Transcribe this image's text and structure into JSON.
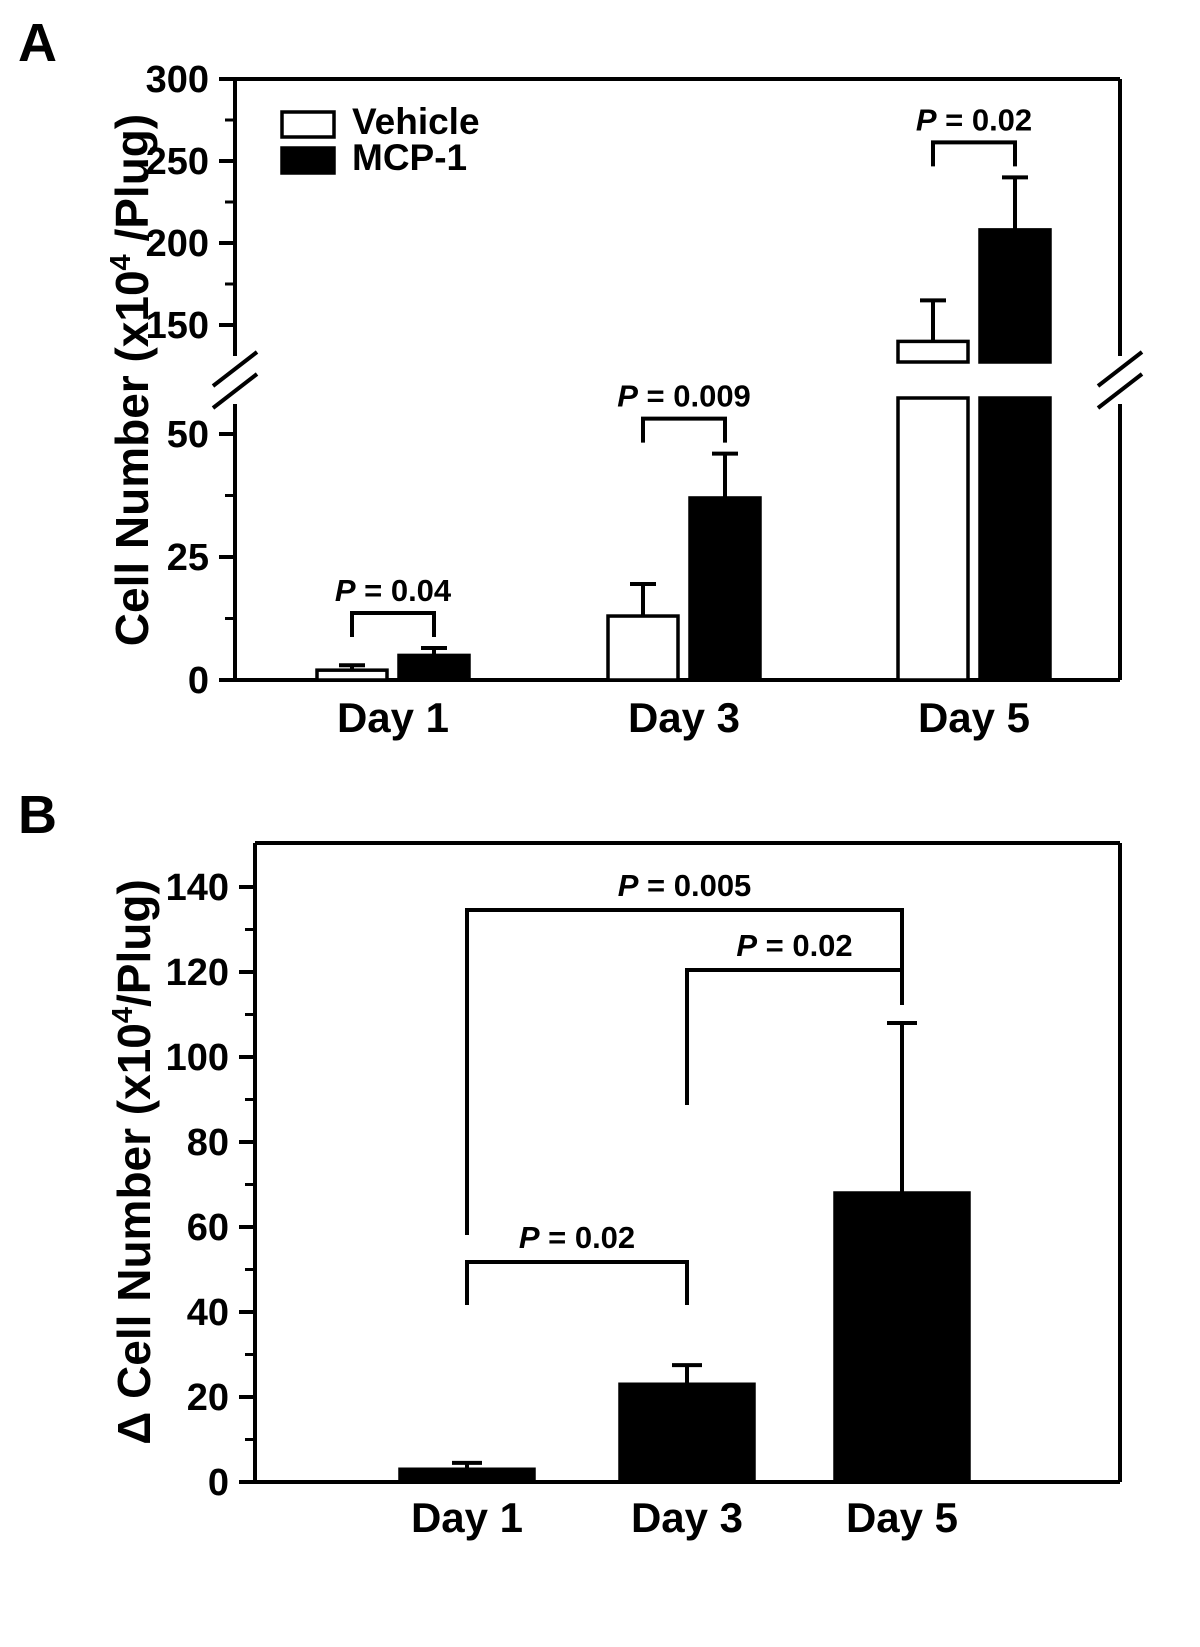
{
  "figure": {
    "panel_a": "A",
    "panel_b": "B",
    "ink": "#000000",
    "background": "#ffffff"
  },
  "chart_data": [
    {
      "panel": "A",
      "type": "bar",
      "title": "",
      "ylabel": {
        "pre": "Cell Number (x10",
        "sup": "4",
        "post": " /Plug)"
      },
      "categories": [
        "Day 1",
        "Day 3",
        "Day 5"
      ],
      "series": [
        {
          "name": "Vehicle",
          "fill": "#ffffff",
          "values": [
            2,
            13,
            140
          ],
          "errors": [
            1,
            6.5,
            25
          ]
        },
        {
          "name": "MCP-1",
          "fill": "#000000",
          "values": [
            5,
            37,
            208
          ],
          "errors": [
            1.5,
            9,
            32
          ]
        }
      ],
      "ylim": [
        0,
        300
      ],
      "axis_break": {
        "lower_segment_max": 57,
        "upper_segment_min": 130
      },
      "lower_ticks": [
        0,
        25,
        50
      ],
      "upper_ticks": [
        150,
        200,
        250,
        300
      ],
      "grid": false,
      "legend_position": "top-left",
      "significance": [
        {
          "group": "Day 1",
          "label": "P = 0.04"
        },
        {
          "group": "Day 3",
          "label": "P = 0.009"
        },
        {
          "group": "Day 5",
          "label": "P = 0.02"
        }
      ]
    },
    {
      "panel": "B",
      "type": "bar",
      "title": "",
      "ylabel": {
        "pre": "Δ Cell Number (x10",
        "sup": "4",
        "post": "/Plug)"
      },
      "categories": [
        "Day 1",
        "Day 3",
        "Day 5"
      ],
      "values": [
        3,
        23,
        68
      ],
      "errors": [
        1.5,
        4.5,
        40
      ],
      "bar_fill": "#000000",
      "ylim": [
        0,
        150
      ],
      "yticks": [
        0,
        20,
        40,
        60,
        80,
        100,
        120,
        140
      ],
      "grid": false,
      "significance": [
        {
          "from": "Day 1",
          "to": "Day 3",
          "label": "P = 0.02"
        },
        {
          "from": "Day 3",
          "to": "Day 5",
          "label": "P = 0.02"
        },
        {
          "from": "Day 1",
          "to": "Day 5",
          "label": "P = 0.005"
        }
      ]
    }
  ]
}
